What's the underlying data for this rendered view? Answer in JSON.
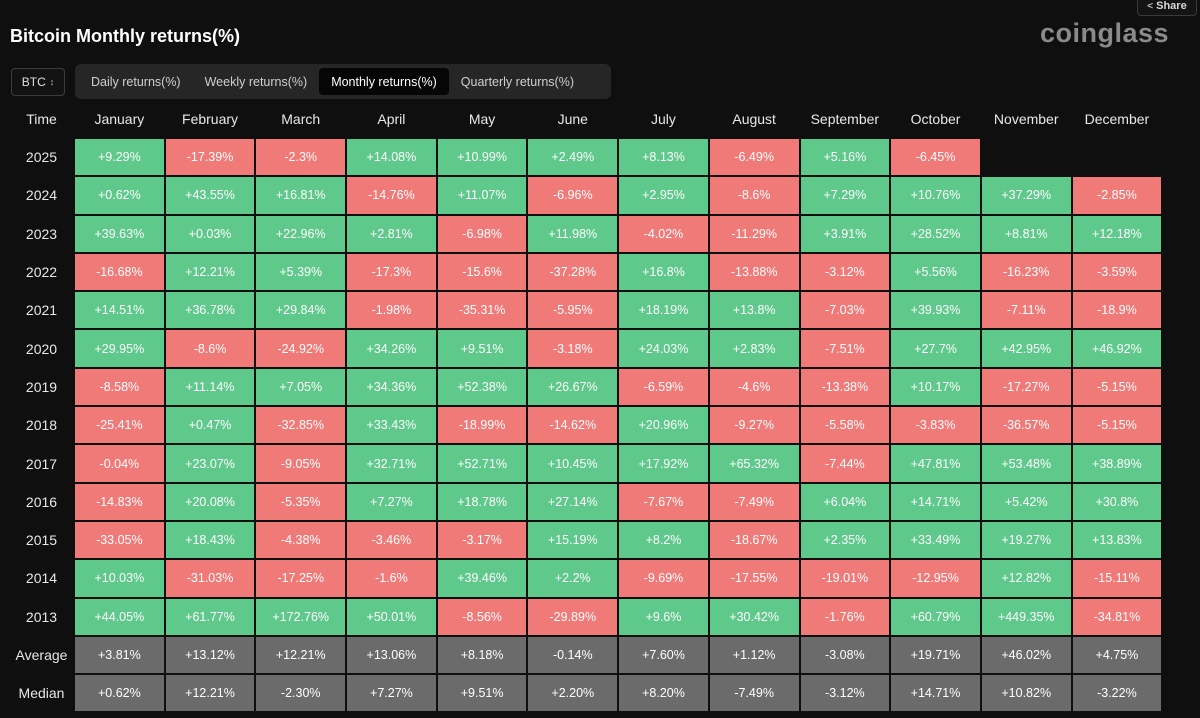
{
  "header": {
    "share_label": "Share",
    "share_icon": "share-icon",
    "title": "Bitcoin Monthly returns(%)",
    "brand": "coinglass"
  },
  "asset_select": {
    "value": "BTC",
    "icon": "chevron-up-down-icon"
  },
  "tabs": [
    {
      "label": "Daily returns(%)",
      "active": false
    },
    {
      "label": "Weekly returns(%)",
      "active": false
    },
    {
      "label": "Monthly returns(%)",
      "active": true
    },
    {
      "label": "Quarterly returns(%)",
      "active": false
    }
  ],
  "colors": {
    "positive": "#5ec98a",
    "negative": "#f07a78",
    "stat": "#6b6b6b"
  },
  "table": {
    "columns": [
      "Time",
      "January",
      "February",
      "March",
      "April",
      "May",
      "June",
      "July",
      "August",
      "September",
      "October",
      "November",
      "December"
    ],
    "rows": [
      {
        "label": "2025",
        "values": [
          "+9.29%",
          "-17.39%",
          "-2.3%",
          "+14.08%",
          "+10.99%",
          "+2.49%",
          "+8.13%",
          "-6.49%",
          "+5.16%",
          "-6.45%",
          "",
          ""
        ]
      },
      {
        "label": "2024",
        "values": [
          "+0.62%",
          "+43.55%",
          "+16.81%",
          "-14.76%",
          "+11.07%",
          "-6.96%",
          "+2.95%",
          "-8.6%",
          "+7.29%",
          "+10.76%",
          "+37.29%",
          "-2.85%"
        ]
      },
      {
        "label": "2023",
        "values": [
          "+39.63%",
          "+0.03%",
          "+22.96%",
          "+2.81%",
          "-6.98%",
          "+11.98%",
          "-4.02%",
          "-11.29%",
          "+3.91%",
          "+28.52%",
          "+8.81%",
          "+12.18%"
        ]
      },
      {
        "label": "2022",
        "values": [
          "-16.68%",
          "+12.21%",
          "+5.39%",
          "-17.3%",
          "-15.6%",
          "-37.28%",
          "+16.8%",
          "-13.88%",
          "-3.12%",
          "+5.56%",
          "-16.23%",
          "-3.59%"
        ]
      },
      {
        "label": "2021",
        "values": [
          "+14.51%",
          "+36.78%",
          "+29.84%",
          "-1.98%",
          "-35.31%",
          "-5.95%",
          "+18.19%",
          "+13.8%",
          "-7.03%",
          "+39.93%",
          "-7.11%",
          "-18.9%"
        ]
      },
      {
        "label": "2020",
        "values": [
          "+29.95%",
          "-8.6%",
          "-24.92%",
          "+34.26%",
          "+9.51%",
          "-3.18%",
          "+24.03%",
          "+2.83%",
          "-7.51%",
          "+27.7%",
          "+42.95%",
          "+46.92%"
        ]
      },
      {
        "label": "2019",
        "values": [
          "-8.58%",
          "+11.14%",
          "+7.05%",
          "+34.36%",
          "+52.38%",
          "+26.67%",
          "-6.59%",
          "-4.6%",
          "-13.38%",
          "+10.17%",
          "-17.27%",
          "-5.15%"
        ]
      },
      {
        "label": "2018",
        "values": [
          "-25.41%",
          "+0.47%",
          "-32.85%",
          "+33.43%",
          "-18.99%",
          "-14.62%",
          "+20.96%",
          "-9.27%",
          "-5.58%",
          "-3.83%",
          "-36.57%",
          "-5.15%"
        ]
      },
      {
        "label": "2017",
        "values": [
          "-0.04%",
          "+23.07%",
          "-9.05%",
          "+32.71%",
          "+52.71%",
          "+10.45%",
          "+17.92%",
          "+65.32%",
          "-7.44%",
          "+47.81%",
          "+53.48%",
          "+38.89%"
        ]
      },
      {
        "label": "2016",
        "values": [
          "-14.83%",
          "+20.08%",
          "-5.35%",
          "+7.27%",
          "+18.78%",
          "+27.14%",
          "-7.67%",
          "-7.49%",
          "+6.04%",
          "+14.71%",
          "+5.42%",
          "+30.8%"
        ]
      },
      {
        "label": "2015",
        "values": [
          "-33.05%",
          "+18.43%",
          "-4.38%",
          "-3.46%",
          "-3.17%",
          "+15.19%",
          "+8.2%",
          "-18.67%",
          "+2.35%",
          "+33.49%",
          "+19.27%",
          "+13.83%"
        ]
      },
      {
        "label": "2014",
        "values": [
          "+10.03%",
          "-31.03%",
          "-17.25%",
          "-1.6%",
          "+39.46%",
          "+2.2%",
          "-9.69%",
          "-17.55%",
          "-19.01%",
          "-12.95%",
          "+12.82%",
          "-15.11%"
        ]
      },
      {
        "label": "2013",
        "values": [
          "+44.05%",
          "+61.77%",
          "+172.76%",
          "+50.01%",
          "-8.56%",
          "-29.89%",
          "+9.6%",
          "+30.42%",
          "-1.76%",
          "+60.79%",
          "+449.35%",
          "-34.81%"
        ]
      }
    ],
    "stats": [
      {
        "label": "Average",
        "values": [
          "+3.81%",
          "+13.12%",
          "+12.21%",
          "+13.06%",
          "+8.18%",
          "-0.14%",
          "+7.60%",
          "+1.12%",
          "-3.08%",
          "+19.71%",
          "+46.02%",
          "+4.75%"
        ]
      },
      {
        "label": "Median",
        "values": [
          "+0.62%",
          "+12.21%",
          "-2.30%",
          "+7.27%",
          "+9.51%",
          "+2.20%",
          "+8.20%",
          "-7.49%",
          "-3.12%",
          "+14.71%",
          "+10.82%",
          "-3.22%"
        ]
      }
    ]
  }
}
